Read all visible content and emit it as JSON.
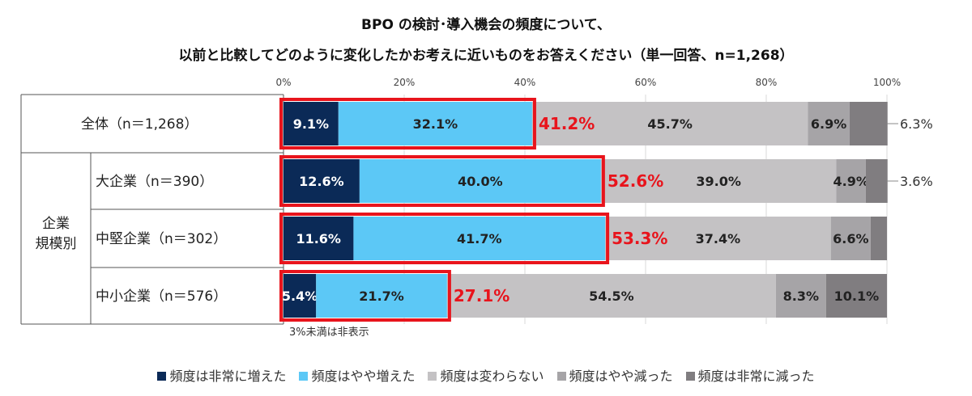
{
  "chart_data": {
    "type": "bar",
    "orientation": "horizontal",
    "stacked": "100%",
    "title_line1": "BPO の検討･導入機会の頻度について、",
    "title_line2": "以前と比較してどのように変化したかお考えに近いものをお答えください（単一回答、n=1,268）",
    "x_ticks": [
      "0%",
      "20%",
      "40%",
      "60%",
      "80%",
      "100%"
    ],
    "xlim": [
      0,
      100
    ],
    "group_label": "企業\n規模別",
    "group_label_lines": [
      "企業",
      "規模別"
    ],
    "categories": [
      "全体（n＝1,268）",
      "大企業（n＝390）",
      "中堅企業（n＝302）",
      "中小企業（n＝576）"
    ],
    "series": [
      {
        "name": "頻度は非常に増えた",
        "color": "#0b2a57",
        "values": [
          9.1,
          12.6,
          11.6,
          5.4
        ],
        "labels": [
          "9.1%",
          "12.6%",
          "11.6%",
          "5.4%"
        ]
      },
      {
        "name": "頻度はやや増えた",
        "color": "#5cc8f6",
        "values": [
          32.1,
          40.0,
          41.7,
          21.7
        ],
        "labels": [
          "32.1%",
          "40.0%",
          "41.7%",
          "21.7%"
        ]
      },
      {
        "name": "頻度は変わらない",
        "color": "#c4c2c4",
        "values": [
          45.7,
          39.0,
          37.4,
          54.5
        ],
        "labels": [
          "45.7%",
          "39.0%",
          "37.4%",
          "54.5%"
        ]
      },
      {
        "name": "頻度はやや減った",
        "color": "#a6a4a7",
        "values": [
          6.9,
          4.9,
          6.6,
          8.3
        ],
        "labels": [
          "6.9%",
          "4.9%",
          "6.6%",
          "8.3%"
        ]
      },
      {
        "name": "頻度は非常に減った",
        "color": "#807d80",
        "values": [
          6.3,
          3.6,
          2.7,
          10.1
        ],
        "labels": [
          "6.3%",
          "3.6%",
          "",
          "10.1%"
        ]
      }
    ],
    "increase_totals": [
      "41.2%",
      "52.6%",
      "53.3%",
      "27.1%"
    ],
    "outside_labels": [
      "6.3%",
      "3.6%",
      "",
      ""
    ],
    "footnote": "3%未満は非表示",
    "colors": {
      "highlight": "#e8141c",
      "total_text": "#e8141c"
    },
    "legend_placement": "bottom"
  }
}
